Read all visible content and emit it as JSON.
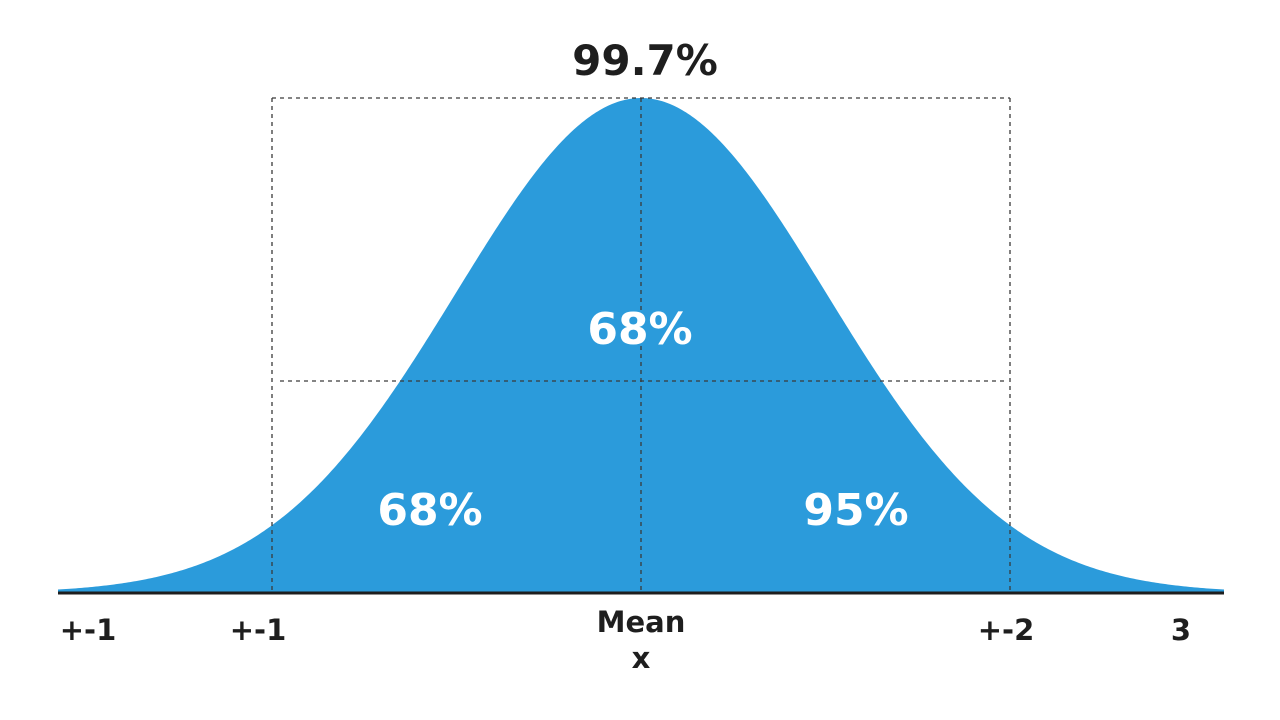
{
  "colors": {
    "curve_fill": "#2b9bdb",
    "axis": "#1e1e1e",
    "text": "#1e1e1e",
    "inner_text": "#ffffff"
  },
  "top_label": "99.7%",
  "region_labels": {
    "center": "68%",
    "left": "68%",
    "right": "95%"
  },
  "axis_labels": {
    "far_left": "+-1",
    "left": "+-1",
    "mean": "Mean",
    "mean_symbol": "x",
    "right": "+-2",
    "far_right": "3"
  }
}
